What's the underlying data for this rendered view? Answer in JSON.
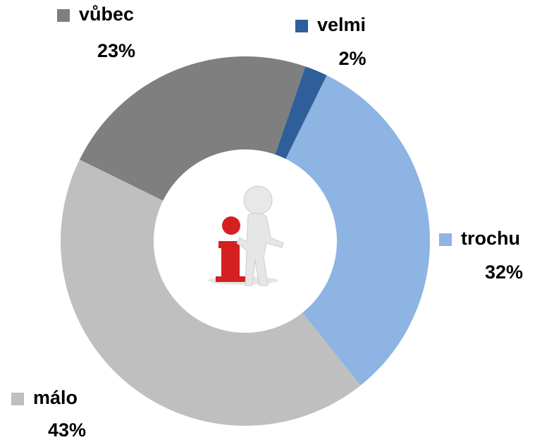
{
  "chart_data": {
    "type": "donut",
    "categories": [
      "velmi",
      "trochu",
      "málo",
      "vůbec"
    ],
    "values": [
      2,
      32,
      43,
      23
    ],
    "value_labels": [
      "2%",
      "32%",
      "43%",
      "23%"
    ],
    "colors": [
      "#2e5f9a",
      "#8db4e2",
      "#bfbfbf",
      "#7f7f7f"
    ]
  }
}
